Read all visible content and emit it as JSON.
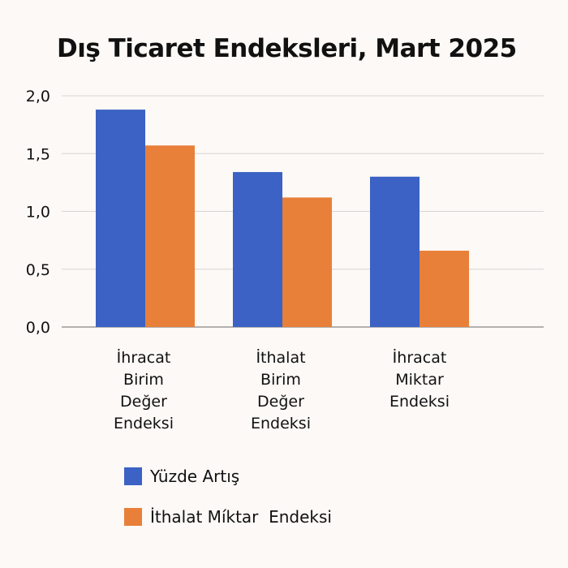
{
  "chart_data": {
    "type": "bar",
    "title": "Dış Ticaret Endeksleri, Mart 2025",
    "categories": [
      [
        "İhracat",
        "Birim",
        "Değer",
        "Endeksi"
      ],
      [
        "İthalat",
        "Birim",
        "Değer",
        "Endeksi"
      ],
      [
        "İhracat",
        "Miktar",
        "Endeksi"
      ]
    ],
    "series": [
      {
        "name": "Yüzde Artış",
        "color": "#3b62c4",
        "values": [
          1.88,
          1.34,
          1.3
        ]
      },
      {
        "name": "İthalat Míktar  Endeksi",
        "color": "#e8803a",
        "values": [
          1.57,
          1.12,
          0.66
        ]
      }
    ],
    "ylim": [
      0,
      2.0
    ],
    "yticks": [
      "0,0",
      "0,5",
      "1,0",
      "1,5",
      "2,0"
    ],
    "ytick_values": [
      0,
      0.5,
      1.0,
      1.5,
      2.0
    ],
    "grid": true,
    "legend_position": "bottom-left"
  }
}
